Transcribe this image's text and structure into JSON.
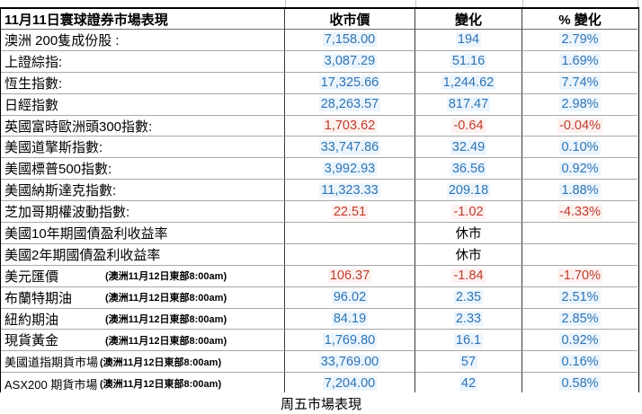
{
  "table": {
    "title": "11月11日寰球證券市場表現",
    "columns": {
      "close": "收市價",
      "change": "變化",
      "pct": "% 變化"
    },
    "rows": [
      {
        "label": "澳洲 200隻成份股 :",
        "close": "7,158.00",
        "change": "194",
        "pct": "2.79%",
        "color": "blue"
      },
      {
        "label": "上證綜指:",
        "close": "3,087.29",
        "change": "51.16",
        "pct": "1.69%",
        "color": "blue"
      },
      {
        "label": "恆生指數:",
        "close": "17,325.66",
        "change": "1,244.62",
        "pct": "7.74%",
        "color": "blue"
      },
      {
        "label": "日經指數",
        "close": "28,263.57",
        "change": "817.47",
        "pct": "2.98%",
        "color": "blue"
      },
      {
        "label": "英國富時歐洲頭300指數:",
        "close": "1,703.62",
        "change": "-0.64",
        "pct": "-0.04%",
        "color": "red"
      },
      {
        "label": "美國道擎斯指數:",
        "close": "33,747.86",
        "change": "32.49",
        "pct": "0.10%",
        "color": "blue"
      },
      {
        "label": "美國標普500指數:",
        "close": "3,992.93",
        "change": "36.56",
        "pct": "0.92%",
        "color": "blue"
      },
      {
        "label": "美國納斯達克指數:",
        "close": "11,323.33",
        "change": "209.18",
        "pct": "1.88%",
        "color": "blue"
      },
      {
        "label": "芝加哥期權波動指數:",
        "close": "22.51",
        "change": "-1.02",
        "pct": "-4.33%",
        "color": "red"
      },
      {
        "label": "美國10年期國債盈利收益率",
        "close": "",
        "change": "休市",
        "pct": "",
        "color": "black"
      },
      {
        "label": "美國2年期國債盈利收益率",
        "close": "",
        "change": "休市",
        "pct": "",
        "color": "black"
      },
      {
        "label": "美元匯價",
        "note": "(澳洲11月12日東部8:00am)",
        "close": "106.37",
        "change": "-1.84",
        "pct": "-1.70%",
        "color": "red"
      },
      {
        "label": "布蘭特期油",
        "note": "(澳洲11月12日東部8:00am)",
        "close": "96.02",
        "change": "2.35",
        "pct": "2.51%",
        "color": "blue"
      },
      {
        "label": "紐約期油",
        "note": "(澳洲11月12日東部8:00am)",
        "close": "84.19",
        "change": "2.33",
        "pct": "2.85%",
        "color": "blue"
      },
      {
        "label": "現貨黃金",
        "note": "(澳洲11月12日東部8:00am)",
        "close": "1,769.80",
        "change": "16.1",
        "pct": "0.92%",
        "color": "blue"
      },
      {
        "label": "美國道指期貨市場",
        "note": "(澳洲11月12日東部8:00am)",
        "small": true,
        "close": "33,769.00",
        "change": "57",
        "pct": "0.16%",
        "color": "blue"
      },
      {
        "label": "ASX200 期貨市場",
        "note": "(澳洲11月12日東部8:00am)",
        "small": true,
        "close": "7,204.00",
        "change": "42",
        "pct": "0.58%",
        "color": "blue"
      }
    ],
    "footer": "周五市場表現"
  },
  "colors": {
    "blue": "#2E74B5",
    "red": "#C03B2E",
    "black": "#000000"
  }
}
